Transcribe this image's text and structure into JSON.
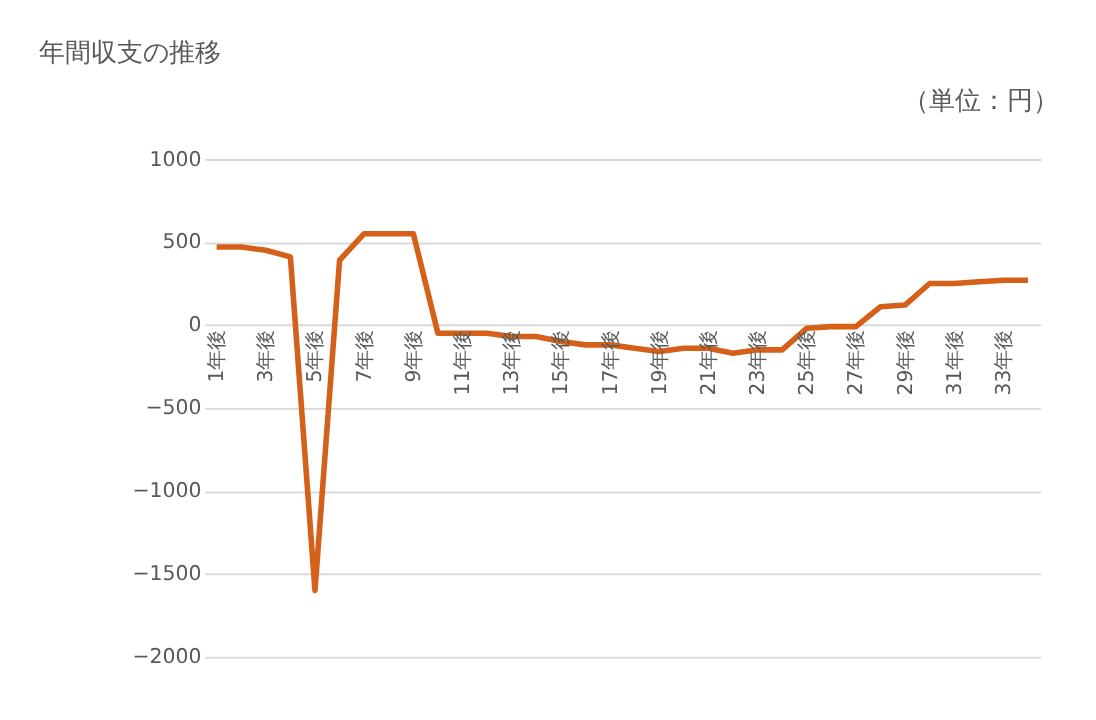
{
  "chart_data": {
    "type": "line",
    "title": "年間収支の推移",
    "annotations": [
      "（単位：円）"
    ],
    "categories": [
      "1年後",
      null,
      "3年後",
      null,
      "5年後",
      null,
      "7年後",
      null,
      "9年後",
      null,
      "11年後",
      null,
      "13年後",
      null,
      "15年後",
      null,
      "17年後",
      null,
      "19年後",
      null,
      "21年後",
      null,
      "23年後",
      null,
      "25年後",
      null,
      "27年後",
      null,
      "29年後",
      null,
      "31年後",
      null,
      "33年後",
      null
    ],
    "series": [
      {
        "color": "#d4601a",
        "values": [
          470,
          470,
          450,
          410,
          -1600,
          390,
          550,
          550,
          550,
          -50,
          -50,
          -50,
          -70,
          -70,
          -100,
          -120,
          -120,
          -140,
          -160,
          -140,
          -140,
          -170,
          -150,
          -150,
          -20,
          -10,
          -10,
          110,
          120,
          250,
          250,
          260,
          270,
          270
        ]
      }
    ],
    "ylim": [
      -2000,
      1000
    ],
    "yticks": [
      -2000,
      -1500,
      -1000,
      -500,
      0,
      500,
      1000
    ],
    "grid": "y",
    "marker": "none",
    "line_style": "solid"
  }
}
